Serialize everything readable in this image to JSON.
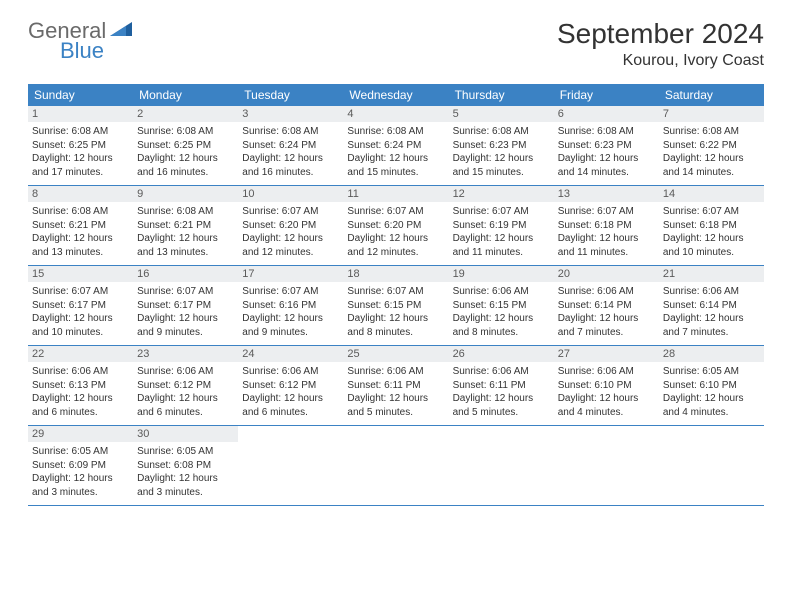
{
  "logo": {
    "text1": "General",
    "text2": "Blue"
  },
  "title": "September 2024",
  "location": "Kourou, Ivory Coast",
  "colors": {
    "header_bg": "#3b82c4",
    "daynum_bg": "#eceef0",
    "text": "#333333",
    "logo_gray": "#6a6a6a",
    "logo_blue": "#3b82c4"
  },
  "typography": {
    "title_size": 28,
    "location_size": 16,
    "weekday_size": 12,
    "daynum_size": 11,
    "body_size": 10
  },
  "layout": {
    "columns": 7
  },
  "weekdays": [
    "Sunday",
    "Monday",
    "Tuesday",
    "Wednesday",
    "Thursday",
    "Friday",
    "Saturday"
  ],
  "labels": {
    "sunrise": "Sunrise:",
    "sunset": "Sunset:",
    "daylight": "Daylight:"
  },
  "days": [
    {
      "n": 1,
      "sunrise": "6:08 AM",
      "sunset": "6:25 PM",
      "daylight": "12 hours and 17 minutes."
    },
    {
      "n": 2,
      "sunrise": "6:08 AM",
      "sunset": "6:25 PM",
      "daylight": "12 hours and 16 minutes."
    },
    {
      "n": 3,
      "sunrise": "6:08 AM",
      "sunset": "6:24 PM",
      "daylight": "12 hours and 16 minutes."
    },
    {
      "n": 4,
      "sunrise": "6:08 AM",
      "sunset": "6:24 PM",
      "daylight": "12 hours and 15 minutes."
    },
    {
      "n": 5,
      "sunrise": "6:08 AM",
      "sunset": "6:23 PM",
      "daylight": "12 hours and 15 minutes."
    },
    {
      "n": 6,
      "sunrise": "6:08 AM",
      "sunset": "6:23 PM",
      "daylight": "12 hours and 14 minutes."
    },
    {
      "n": 7,
      "sunrise": "6:08 AM",
      "sunset": "6:22 PM",
      "daylight": "12 hours and 14 minutes."
    },
    {
      "n": 8,
      "sunrise": "6:08 AM",
      "sunset": "6:21 PM",
      "daylight": "12 hours and 13 minutes."
    },
    {
      "n": 9,
      "sunrise": "6:08 AM",
      "sunset": "6:21 PM",
      "daylight": "12 hours and 13 minutes."
    },
    {
      "n": 10,
      "sunrise": "6:07 AM",
      "sunset": "6:20 PM",
      "daylight": "12 hours and 12 minutes."
    },
    {
      "n": 11,
      "sunrise": "6:07 AM",
      "sunset": "6:20 PM",
      "daylight": "12 hours and 12 minutes."
    },
    {
      "n": 12,
      "sunrise": "6:07 AM",
      "sunset": "6:19 PM",
      "daylight": "12 hours and 11 minutes."
    },
    {
      "n": 13,
      "sunrise": "6:07 AM",
      "sunset": "6:18 PM",
      "daylight": "12 hours and 11 minutes."
    },
    {
      "n": 14,
      "sunrise": "6:07 AM",
      "sunset": "6:18 PM",
      "daylight": "12 hours and 10 minutes."
    },
    {
      "n": 15,
      "sunrise": "6:07 AM",
      "sunset": "6:17 PM",
      "daylight": "12 hours and 10 minutes."
    },
    {
      "n": 16,
      "sunrise": "6:07 AM",
      "sunset": "6:17 PM",
      "daylight": "12 hours and 9 minutes."
    },
    {
      "n": 17,
      "sunrise": "6:07 AM",
      "sunset": "6:16 PM",
      "daylight": "12 hours and 9 minutes."
    },
    {
      "n": 18,
      "sunrise": "6:07 AM",
      "sunset": "6:15 PM",
      "daylight": "12 hours and 8 minutes."
    },
    {
      "n": 19,
      "sunrise": "6:06 AM",
      "sunset": "6:15 PM",
      "daylight": "12 hours and 8 minutes."
    },
    {
      "n": 20,
      "sunrise": "6:06 AM",
      "sunset": "6:14 PM",
      "daylight": "12 hours and 7 minutes."
    },
    {
      "n": 21,
      "sunrise": "6:06 AM",
      "sunset": "6:14 PM",
      "daylight": "12 hours and 7 minutes."
    },
    {
      "n": 22,
      "sunrise": "6:06 AM",
      "sunset": "6:13 PM",
      "daylight": "12 hours and 6 minutes."
    },
    {
      "n": 23,
      "sunrise": "6:06 AM",
      "sunset": "6:12 PM",
      "daylight": "12 hours and 6 minutes."
    },
    {
      "n": 24,
      "sunrise": "6:06 AM",
      "sunset": "6:12 PM",
      "daylight": "12 hours and 6 minutes."
    },
    {
      "n": 25,
      "sunrise": "6:06 AM",
      "sunset": "6:11 PM",
      "daylight": "12 hours and 5 minutes."
    },
    {
      "n": 26,
      "sunrise": "6:06 AM",
      "sunset": "6:11 PM",
      "daylight": "12 hours and 5 minutes."
    },
    {
      "n": 27,
      "sunrise": "6:06 AM",
      "sunset": "6:10 PM",
      "daylight": "12 hours and 4 minutes."
    },
    {
      "n": 28,
      "sunrise": "6:05 AM",
      "sunset": "6:10 PM",
      "daylight": "12 hours and 4 minutes."
    },
    {
      "n": 29,
      "sunrise": "6:05 AM",
      "sunset": "6:09 PM",
      "daylight": "12 hours and 3 minutes."
    },
    {
      "n": 30,
      "sunrise": "6:05 AM",
      "sunset": "6:08 PM",
      "daylight": "12 hours and 3 minutes."
    }
  ]
}
